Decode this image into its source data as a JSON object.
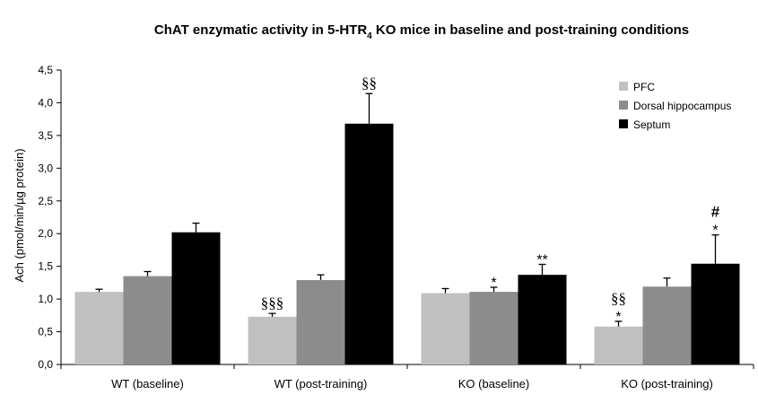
{
  "chart_data": {
    "type": "bar",
    "title": "ChAT enzymatic activity in 5-HTR",
    "title_subscript": "4",
    "title_rest": " KO mice in baseline and post-training conditions",
    "ylabel": "Ach (pmol/min/µg protein)",
    "xlabel": "",
    "ylim": [
      0,
      4.5
    ],
    "yticks": [
      "0,0",
      "0,5",
      "1,0",
      "1,5",
      "2,0",
      "2,5",
      "3,0",
      "3,5",
      "4,0",
      "4,5"
    ],
    "categories": [
      "WT (baseline)",
      "WT (post-training)",
      "KO (baseline)",
      "KO (post-training)"
    ],
    "grid": false,
    "legend_position": "top-right",
    "series": [
      {
        "name": "PFC",
        "color": "#c0c0c0",
        "values": [
          1.11,
          0.73,
          1.09,
          0.58
        ],
        "errors": [
          0.04,
          0.05,
          0.07,
          0.08
        ]
      },
      {
        "name": "Dorsal hippocampus",
        "color": "#8c8c8c",
        "values": [
          1.35,
          1.29,
          1.11,
          1.19
        ],
        "errors": [
          0.07,
          0.08,
          0.07,
          0.13
        ]
      },
      {
        "name": "Septum",
        "color": "#000000",
        "values": [
          2.02,
          3.68,
          1.37,
          1.54
        ],
        "errors": [
          0.14,
          0.46,
          0.16,
          0.44
        ]
      }
    ],
    "annotations": [
      {
        "category": 1,
        "series": 2,
        "lines": [
          "§§"
        ]
      },
      {
        "category": 1,
        "series": 0,
        "lines": [
          "§§§"
        ]
      },
      {
        "category": 2,
        "series": 1,
        "lines": [
          "*"
        ]
      },
      {
        "category": 2,
        "series": 2,
        "lines": [
          "**"
        ]
      },
      {
        "category": 3,
        "series": 0,
        "lines": [
          "§§",
          "*"
        ]
      },
      {
        "category": 3,
        "series": 2,
        "lines": [
          "#",
          "*"
        ]
      }
    ]
  }
}
